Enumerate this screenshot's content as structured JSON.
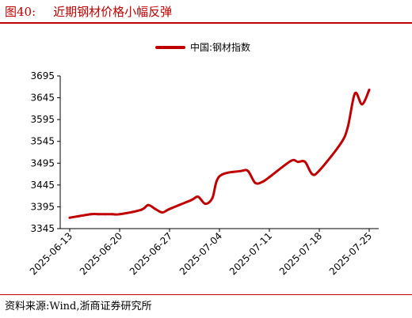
{
  "figure": {
    "label": "图40:",
    "title": "近期钢材价格小幅反弹",
    "source": "资料来源:Wind,浙商证券研究所"
  },
  "colors": {
    "accent": "#c00000",
    "series": "#c00000",
    "axis": "#000000"
  },
  "chart_data": {
    "type": "line",
    "title": "",
    "xlabel": "",
    "ylabel": "",
    "ylim": [
      3345,
      3695
    ],
    "yticks": [
      3345,
      3395,
      3445,
      3495,
      3545,
      3595,
      3645,
      3695
    ],
    "xticks": [
      "2025-06-13",
      "2025-06-20",
      "2025-06-27",
      "2025-07-04",
      "2025-07-11",
      "2025-07-18",
      "2025-07-25"
    ],
    "grid": false,
    "legend": "top-center",
    "series": [
      {
        "name": "中国:钢材指数",
        "x": [
          "2025-06-13",
          "2025-06-16",
          "2025-06-17",
          "2025-06-18",
          "2025-06-19",
          "2025-06-20",
          "2025-06-23",
          "2025-06-24",
          "2025-06-25",
          "2025-06-26",
          "2025-06-27",
          "2025-06-30",
          "2025-07-01",
          "2025-07-02",
          "2025-07-03",
          "2025-07-04",
          "2025-07-07",
          "2025-07-08",
          "2025-07-09",
          "2025-07-10",
          "2025-07-11",
          "2025-07-14",
          "2025-07-15",
          "2025-07-16",
          "2025-07-17",
          "2025-07-18",
          "2025-07-21",
          "2025-07-22",
          "2025-07-23",
          "2025-07-24",
          "2025-07-25"
        ],
        "values": [
          3370,
          3378,
          3378,
          3378,
          3378,
          3378,
          3388,
          3399,
          3390,
          3382,
          3390,
          3410,
          3418,
          3402,
          3415,
          3465,
          3477,
          3477,
          3450,
          3452,
          3463,
          3500,
          3498,
          3498,
          3470,
          3478,
          3540,
          3578,
          3655,
          3630,
          3663
        ]
      }
    ]
  }
}
